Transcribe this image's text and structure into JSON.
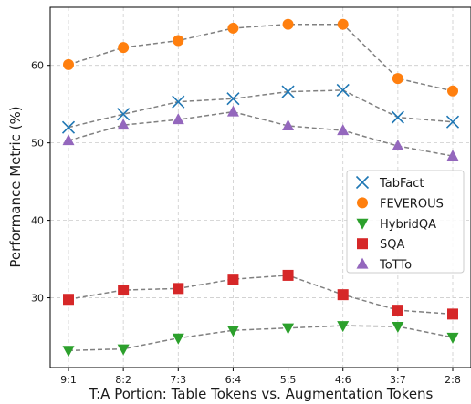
{
  "chart_data": {
    "type": "line",
    "title": "",
    "xlabel": "T:A Portion: Table Tokens vs. Augmentation Tokens",
    "ylabel": "Performance Metric (%)",
    "categories": [
      "9:1",
      "8:2",
      "7:3",
      "6:4",
      "5:5",
      "4:6",
      "3:7",
      "2:8"
    ],
    "ylim": [
      21,
      67.5
    ],
    "yticks": [
      30,
      40,
      50,
      60
    ],
    "grid": true,
    "legend_position": "center-right",
    "line_color": "#808080",
    "series": [
      {
        "name": "TabFact",
        "marker": "x",
        "color": "#1f77b4",
        "values": [
          52.0,
          53.7,
          55.3,
          55.7,
          56.6,
          56.8,
          53.3,
          52.7
        ]
      },
      {
        "name": "FEVEROUS",
        "marker": "circle",
        "color": "#ff7f0e",
        "values": [
          60.1,
          62.3,
          63.2,
          64.8,
          65.3,
          65.3,
          58.3,
          56.7
        ]
      },
      {
        "name": "HybridQA",
        "marker": "triangle-down",
        "color": "#2ca02c",
        "values": [
          23.2,
          23.4,
          24.8,
          25.8,
          26.1,
          26.4,
          26.3,
          24.9
        ]
      },
      {
        "name": "SQA",
        "marker": "square",
        "color": "#d62728",
        "values": [
          29.8,
          31.0,
          31.2,
          32.4,
          32.9,
          30.4,
          28.4,
          27.9
        ]
      },
      {
        "name": "ToTTo",
        "marker": "triangle-up",
        "color": "#9467bd",
        "values": [
          50.3,
          52.3,
          53.0,
          54.0,
          52.2,
          51.6,
          49.6,
          48.3
        ]
      }
    ]
  }
}
